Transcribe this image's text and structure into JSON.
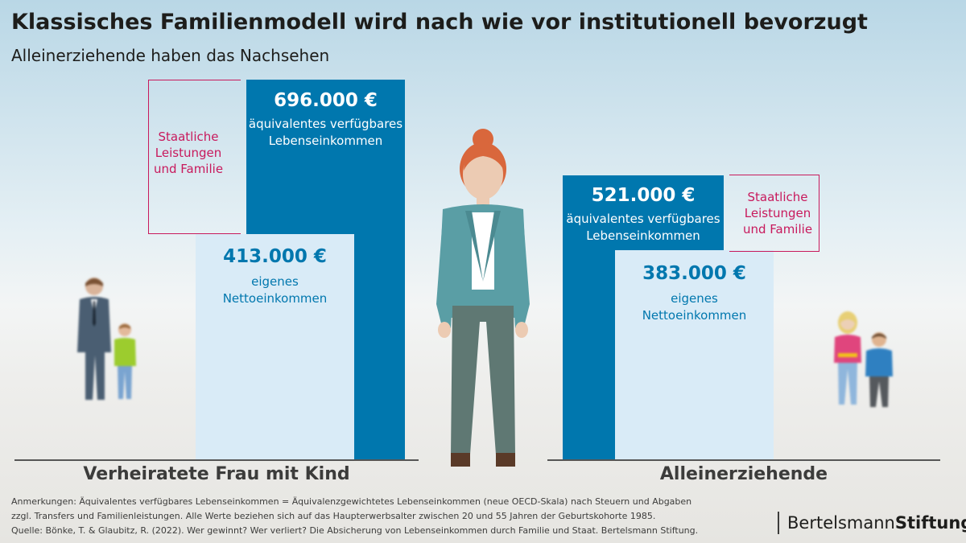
{
  "title": "Klassisches Familienmodell wird nach wie vor institutionell bevorzugt",
  "subtitle": "Alleinerziehende haben das Nachsehen",
  "chart_data": {
    "type": "bar",
    "categories": [
      "Verheiratete Frau mit Kind",
      "Alleinerziehende"
    ],
    "series": [
      {
        "name": "äquivalentes verfügbares Lebenseinkommen",
        "values": [
          696000,
          521000
        ],
        "labels": [
          "696.000 €",
          "521.000 €"
        ]
      },
      {
        "name": "eigenes Nettoeinkommen",
        "values": [
          413000,
          383000
        ],
        "labels": [
          "413.000 €",
          "383.000 €"
        ]
      }
    ],
    "series_desc": {
      "disposable_line1": "äquivalentes verfügbares",
      "disposable_line2": "Lebenseinkommen",
      "net_line1": "eigenes",
      "net_line2": "Nettoeinkommen"
    },
    "annotation": {
      "line1": "Staatliche",
      "line2": "Leistungen",
      "line3": "und Familie"
    },
    "ylim": [
      0,
      696000
    ],
    "grid": false,
    "legend": "none"
  },
  "notes": {
    "line1": "Anmerkungen: Äquivalentes verfügbares Lebenseinkommen = Äquivalenzgewichtetes Lebenseinkommen (neue OECD-Skala) nach Steuern und Abgaben",
    "line2": "zzgl. Transfers und Familienleistungen. Alle Werte beziehen sich auf das Haupterwerbsalter zwischen 20 und 55 Jahren der Geburtskohorte 1985.",
    "line3": "Quelle: Bönke, T. & Glaubitz, R. (2022). Wer gewinnt? Wer verliert? Die Absicherung von Lebenseinkommen durch Familie und Staat. Bertelsmann Stiftung."
  },
  "logo": {
    "part1": "Bertelsmann",
    "part2": "Stiftung"
  },
  "colors": {
    "dark_bar": "#0077ae",
    "light_bar": "#d9ebf7",
    "annotation": "#c8195c"
  },
  "icons": [
    "man-figure-icon",
    "boy-figure-icon",
    "woman-figure-icon",
    "girl-figure-icon",
    "child-figure-icon"
  ]
}
